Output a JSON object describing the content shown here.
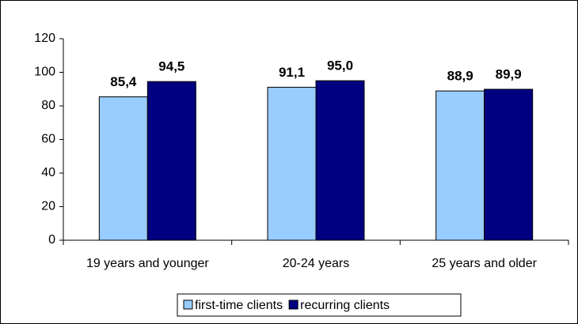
{
  "chart_data": {
    "type": "bar",
    "categories": [
      "19 years and younger",
      "20-24 years",
      "25 years and older"
    ],
    "series": [
      {
        "name": "first-time clients",
        "color": "#99ccff",
        "values": [
          85.4,
          91.1,
          88.9
        ],
        "value_labels": [
          "85,4",
          "91,1",
          "88,9"
        ]
      },
      {
        "name": "recurring clients",
        "color": "#000080",
        "values": [
          94.5,
          95.0,
          89.9
        ],
        "value_labels": [
          "94,5",
          "95,0",
          "89,9"
        ]
      }
    ],
    "ylim": [
      0,
      120
    ],
    "yticks": [
      0,
      20,
      40,
      60,
      80,
      100,
      120
    ],
    "grid": false,
    "legend": "bottom"
  }
}
